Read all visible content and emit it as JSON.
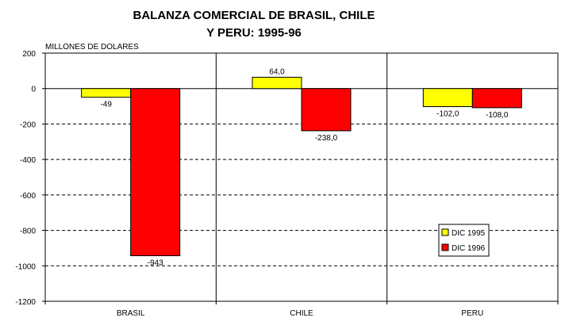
{
  "chart_data": {
    "type": "bar",
    "title_lines": [
      "BALANZA COMERCIAL DE BRASIL, CHILE",
      "Y PERU: 1995-96"
    ],
    "unit_label": "MILLONES DE DOLARES",
    "categories": [
      "BRASIL",
      "CHILE",
      "PERU"
    ],
    "series": [
      {
        "name": "DIC 1995",
        "values": [
          -49,
          64,
          -102
        ],
        "labels": [
          "-49",
          "64,0",
          "-102,0"
        ],
        "color": "#ffff00"
      },
      {
        "name": "DIC 1996",
        "values": [
          -943,
          -238,
          -108
        ],
        "labels": [
          "-943",
          "-238,0",
          "-108,0"
        ],
        "color": "#ff0000"
      }
    ],
    "ylim": [
      -1200,
      200
    ],
    "yticks": [
      200,
      0,
      -200,
      -400,
      -600,
      -800,
      -1000,
      -1200
    ],
    "ytick_labels": [
      "200",
      "0",
      "-200",
      "-400",
      "-600",
      "-800",
      "-1000",
      "-1200"
    ],
    "grid": "dashed-horizontal",
    "legend_position": "bottom-right"
  }
}
